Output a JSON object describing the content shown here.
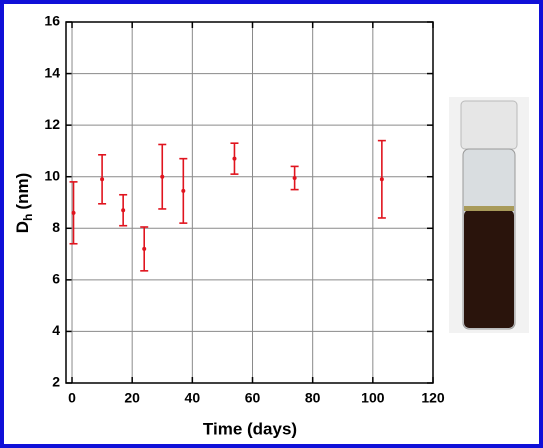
{
  "chart_data": {
    "type": "errorbar-scatter",
    "xlabel": "Time (days)",
    "ylabel": {
      "main": "D",
      "sub": "h",
      "unit": "(nm)"
    },
    "x": [
      0.5,
      10,
      17,
      24,
      30,
      37,
      54,
      74,
      103
    ],
    "series": [
      {
        "color": "#e0141e",
        "values": [
          8.6,
          9.9,
          8.7,
          7.2,
          10.0,
          9.45,
          10.7,
          9.95,
          9.9
        ],
        "errors": [
          1.2,
          0.95,
          0.6,
          0.85,
          1.25,
          1.25,
          0.6,
          0.45,
          1.5
        ]
      }
    ],
    "xlim": [
      -2,
      120
    ],
    "xticks": [
      0,
      20,
      40,
      60,
      80,
      100,
      120
    ],
    "ylim": [
      2,
      16
    ],
    "yticks": [
      2,
      4,
      6,
      8,
      10,
      12,
      14,
      16
    ],
    "grid": true
  }
}
